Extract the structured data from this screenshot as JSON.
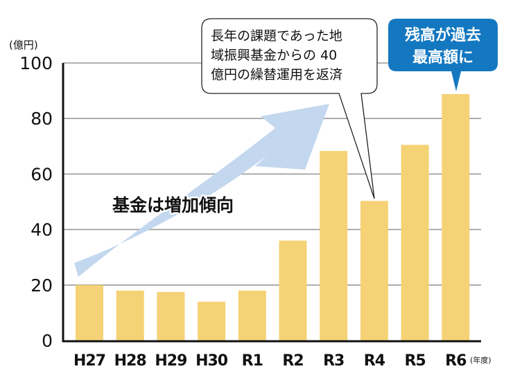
{
  "chart_data": {
    "type": "bar",
    "title": "",
    "ylabel": "(億円)",
    "xlabel": "(年度)",
    "ylim": [
      0,
      100
    ],
    "yticks": [
      0,
      20,
      40,
      60,
      80,
      100
    ],
    "grid": true,
    "categories": [
      "H27",
      "H28",
      "H29",
      "H30",
      "R1",
      "R2",
      "R3",
      "R4",
      "R5",
      "R6"
    ],
    "values": [
      20,
      18,
      17.5,
      14,
      18,
      36,
      68.3,
      50.3,
      70.5,
      88.8
    ],
    "bar_color": "#f5d275",
    "annotations": [
      {
        "type": "arrow-label",
        "text": "基金は増加傾向",
        "color": "#c3d8ee"
      },
      {
        "type": "callout",
        "target": "R4",
        "lines": [
          "長年の課題であった地",
          "域振興基金からの 40",
          "億円の繰替運用を返済"
        ]
      },
      {
        "type": "callout",
        "target": "R6",
        "lines": [
          "残高が過去",
          "最高額に"
        ],
        "color": "#1478c0"
      }
    ]
  },
  "axis": {
    "y_unit": "(億円)",
    "x_unit": "(年度)",
    "y_labels": [
      "100",
      "80",
      "60",
      "40",
      "20",
      "0"
    ]
  },
  "labels": {
    "trend": "基金は増加傾向",
    "callout_r4": [
      "長年の課題であった地",
      "域振興基金からの 40",
      "億円の繰替運用を返済"
    ],
    "callout_r6": [
      "残高が過去",
      "最高額に"
    ]
  },
  "colors": {
    "bar": "#f5d275",
    "arrow": "#c3d8ee",
    "callout_blue": "#1478c0",
    "grid": "#999999",
    "axis": "#111111"
  }
}
